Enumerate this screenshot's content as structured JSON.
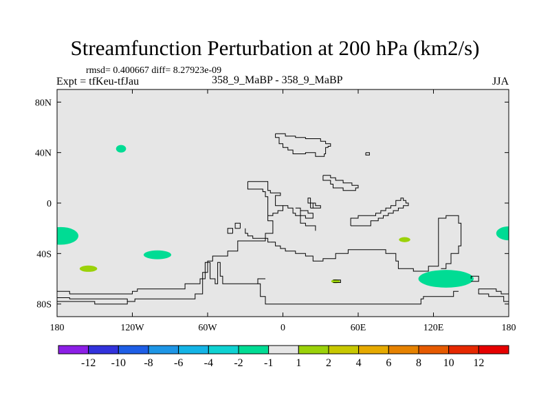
{
  "title": "Streamfunction Perturbation at 200 hPa (km2/s)",
  "stats_line": "rmsd= 0.400667 diff= 8.27923e-09",
  "left_subtitle": "Expt = tfKeu-tfJau",
  "center_subtitle": "358_9_MaBP - 358_9_MaBP",
  "right_subtitle": "JJA",
  "colors": {
    "plot_background": "#e6e6e6",
    "coastline": "#000000",
    "neg_1_to_2": "#00dc94",
    "pos_1_to_2": "#9bd20a"
  },
  "chart_data": {
    "type": "heatmap",
    "projection": "cylindrical-equidistant",
    "xlim": [
      -180,
      180
    ],
    "ylim": [
      -90,
      90
    ],
    "x_ticks": [
      {
        "value": -180,
        "label": "180"
      },
      {
        "value": -120,
        "label": "120W"
      },
      {
        "value": -60,
        "label": "60W"
      },
      {
        "value": 0,
        "label": "0"
      },
      {
        "value": 60,
        "label": "60E"
      },
      {
        "value": 120,
        "label": "120E"
      },
      {
        "value": 180,
        "label": "180"
      }
    ],
    "y_ticks": [
      {
        "value": 80,
        "label": "80N"
      },
      {
        "value": 40,
        "label": "40N"
      },
      {
        "value": 0,
        "label": "0"
      },
      {
        "value": -40,
        "label": "40S"
      },
      {
        "value": -80,
        "label": "80S"
      }
    ],
    "colorbar": {
      "levels": [
        "-12",
        "-10",
        "-8",
        "-6",
        "-4",
        "-2",
        "-1",
        "1",
        "2",
        "4",
        "6",
        "8",
        "10",
        "12"
      ],
      "colors": [
        "#8c1fe6",
        "#3232dc",
        "#1e5ee6",
        "#1e96e6",
        "#14b4e6",
        "#0fd2d2",
        "#00dc94",
        "#e6e6e6",
        "#9bd20a",
        "#c8c800",
        "#e6aa00",
        "#e68200",
        "#e65a00",
        "#e62800",
        "#e60000"
      ]
    },
    "anomalies": [
      {
        "lon": -177,
        "lat": -26,
        "dlon": 14,
        "dlat": 7,
        "sign": "negative",
        "range": "-2 to -1"
      },
      {
        "lon": -129,
        "lat": 43,
        "dlon": 4,
        "dlat": 3,
        "sign": "negative",
        "range": "-2 to -1"
      },
      {
        "lon": -100,
        "lat": -41,
        "dlon": 11,
        "dlat": 3.5,
        "sign": "negative",
        "range": "-2 to -1"
      },
      {
        "lon": -155,
        "lat": -52,
        "dlon": 7,
        "dlat": 2.5,
        "sign": "positive",
        "range": "1 to 2"
      },
      {
        "lon": 97,
        "lat": -29,
        "dlon": 4.5,
        "dlat": 2,
        "sign": "positive",
        "range": "1 to 2"
      },
      {
        "lon": 42,
        "lat": -62,
        "dlon": 3.5,
        "dlat": 1.5,
        "sign": "positive",
        "range": "1 to 2"
      },
      {
        "lon": 130,
        "lat": -60,
        "dlon": 22,
        "dlat": 7,
        "sign": "negative",
        "range": "-2 to -1"
      },
      {
        "lon": 180,
        "lat": -24,
        "dlon": 10,
        "dlat": 5.5,
        "sign": "negative",
        "range": "-2 to -1"
      }
    ],
    "coastlines": [
      [
        [
          -6,
          55
        ],
        [
          -6,
          52
        ],
        [
          -3,
          52
        ],
        [
          -3,
          47
        ],
        [
          0,
          47
        ],
        [
          0,
          44
        ],
        [
          4,
          44
        ],
        [
          4,
          42
        ],
        [
          8,
          42
        ],
        [
          8,
          39
        ],
        [
          18,
          39
        ],
        [
          18,
          40
        ],
        [
          26,
          40
        ],
        [
          26,
          37
        ],
        [
          33,
          37
        ],
        [
          33,
          39
        ],
        [
          34,
          39
        ],
        [
          34,
          44
        ],
        [
          36,
          44
        ],
        [
          36,
          45
        ],
        [
          38,
          45
        ],
        [
          38,
          47
        ],
        [
          34,
          47
        ],
        [
          34,
          49
        ],
        [
          30,
          49
        ],
        [
          30,
          51
        ],
        [
          18,
          51
        ],
        [
          18,
          52
        ],
        [
          10,
          52
        ],
        [
          10,
          53
        ],
        [
          2,
          53
        ],
        [
          2,
          55
        ],
        [
          -6,
          55
        ]
      ],
      [
        [
          66,
          40
        ],
        [
          66,
          38
        ],
        [
          69,
          38
        ],
        [
          69,
          40
        ],
        [
          66,
          40
        ]
      ],
      [
        [
          32,
          22
        ],
        [
          32,
          18
        ],
        [
          38,
          18
        ],
        [
          38,
          15
        ],
        [
          40,
          15
        ],
        [
          40,
          12
        ],
        [
          48,
          12
        ],
        [
          48,
          10
        ],
        [
          58,
          10
        ],
        [
          58,
          12
        ],
        [
          60,
          12
        ],
        [
          60,
          14
        ],
        [
          55,
          14
        ],
        [
          55,
          16
        ],
        [
          48,
          16
        ],
        [
          48,
          18
        ],
        [
          42,
          18
        ],
        [
          42,
          20
        ],
        [
          38,
          20
        ],
        [
          38,
          22
        ],
        [
          32,
          22
        ]
      ],
      [
        [
          -28,
          17
        ],
        [
          -28,
          11
        ],
        [
          -16,
          11
        ],
        [
          -16,
          9
        ],
        [
          -14,
          9
        ],
        [
          -14,
          5
        ],
        [
          -12,
          5
        ],
        [
          -12,
          -10
        ],
        [
          -12,
          -14
        ],
        [
          -8,
          -14
        ],
        [
          -8,
          -24
        ],
        [
          -14,
          -24
        ],
        [
          -14,
          -30
        ],
        [
          -36,
          -30
        ],
        [
          -36,
          -38
        ],
        [
          -44,
          -38
        ],
        [
          -44,
          -42
        ],
        [
          -56,
          -42
        ],
        [
          -56,
          -46
        ],
        [
          -60,
          -46
        ],
        [
          -60,
          -55
        ],
        [
          -64,
          -55
        ],
        [
          -64,
          -60
        ],
        [
          -66,
          -60
        ],
        [
          -66,
          -64
        ],
        [
          -78,
          -64
        ],
        [
          -78,
          -68
        ],
        [
          -116,
          -68
        ],
        [
          -116,
          -70
        ],
        [
          -120,
          -70
        ],
        [
          -120,
          -72
        ],
        [
          -170,
          -72
        ],
        [
          -170,
          -70
        ],
        [
          -180,
          -70
        ]
      ],
      [
        [
          -180,
          -75
        ],
        [
          -170,
          -75
        ],
        [
          -170,
          -76
        ],
        [
          -124,
          -76
        ],
        [
          -124,
          -78
        ],
        [
          -118,
          -78
        ],
        [
          -118,
          -76
        ],
        [
          -70,
          -76
        ],
        [
          -70,
          -72
        ],
        [
          -64,
          -72
        ],
        [
          -64,
          -60
        ],
        [
          -62,
          -60
        ],
        [
          -62,
          -47
        ],
        [
          -58,
          -47
        ],
        [
          -58,
          -60
        ],
        [
          -54,
          -60
        ],
        [
          -54,
          -64
        ],
        [
          -52,
          -64
        ],
        [
          -52,
          -58
        ],
        [
          -52,
          -47
        ],
        [
          -50,
          -47
        ],
        [
          -50,
          -58
        ],
        [
          -48,
          -58
        ],
        [
          -48,
          -64
        ],
        [
          -20,
          -64
        ],
        [
          -20,
          -60
        ],
        [
          -14,
          -60
        ]
      ],
      [
        [
          -12,
          -10
        ],
        [
          -8,
          -10
        ],
        [
          -8,
          -8
        ],
        [
          -4,
          -8
        ],
        [
          -4,
          -6
        ],
        [
          0,
          -6
        ],
        [
          0,
          -2
        ],
        [
          -6,
          -2
        ],
        [
          -6,
          6
        ],
        [
          -2,
          6
        ],
        [
          -2,
          8
        ],
        [
          -10,
          8
        ],
        [
          -10,
          10
        ],
        [
          -12,
          10
        ],
        [
          -12,
          17
        ],
        [
          -28,
          17
        ]
      ],
      [
        [
          -34,
          -20
        ],
        [
          -34,
          -16
        ],
        [
          -38,
          -16
        ],
        [
          -38,
          -20
        ],
        [
          -34,
          -20
        ]
      ],
      [
        [
          -40,
          -24
        ],
        [
          -40,
          -20
        ],
        [
          -44,
          -20
        ],
        [
          -44,
          -24
        ],
        [
          -40,
          -24
        ]
      ],
      [
        [
          -10,
          -31
        ],
        [
          -6,
          -31
        ],
        [
          -6,
          -34
        ],
        [
          -2,
          -34
        ],
        [
          -2,
          -36
        ],
        [
          2,
          -36
        ],
        [
          2,
          -38
        ],
        [
          10,
          -38
        ],
        [
          10,
          -40
        ],
        [
          18,
          -40
        ],
        [
          18,
          -42
        ],
        [
          24,
          -42
        ],
        [
          24,
          -46
        ],
        [
          32,
          -46
        ],
        [
          32,
          -44
        ],
        [
          42,
          -44
        ],
        [
          42,
          -40
        ],
        [
          52,
          -40
        ],
        [
          52,
          -37
        ],
        [
          82,
          -37
        ],
        [
          82,
          -40
        ],
        [
          90,
          -40
        ],
        [
          90,
          -46
        ],
        [
          92,
          -46
        ],
        [
          92,
          -52
        ],
        [
          104,
          -52
        ],
        [
          104,
          -54
        ],
        [
          116,
          -54
        ],
        [
          116,
          -50
        ],
        [
          124,
          -50
        ],
        [
          124,
          -12
        ],
        [
          130,
          -12
        ],
        [
          130,
          -10
        ],
        [
          140,
          -10
        ],
        [
          140,
          -16
        ],
        [
          142,
          -16
        ],
        [
          142,
          -34
        ],
        [
          140,
          -34
        ],
        [
          140,
          -40
        ],
        [
          134,
          -40
        ],
        [
          134,
          -48
        ],
        [
          130,
          -48
        ],
        [
          130,
          -52
        ],
        [
          126,
          -52
        ]
      ],
      [
        [
          0,
          -2
        ],
        [
          4,
          -2
        ],
        [
          4,
          -4
        ],
        [
          8,
          -4
        ],
        [
          8,
          -8
        ],
        [
          10,
          -8
        ],
        [
          10,
          -10
        ],
        [
          18,
          -10
        ],
        [
          18,
          -12
        ],
        [
          24,
          -12
        ],
        [
          24,
          -8
        ],
        [
          20,
          -8
        ],
        [
          20,
          -6
        ],
        [
          14,
          -6
        ],
        [
          14,
          -4
        ],
        [
          10,
          -4
        ]
      ],
      [
        [
          22,
          -4
        ],
        [
          24,
          -4
        ],
        [
          24,
          0
        ],
        [
          20,
          0
        ],
        [
          20,
          4
        ],
        [
          22,
          4
        ],
        [
          22,
          -4
        ]
      ],
      [
        [
          -10,
          -31
        ],
        [
          -12,
          -31
        ],
        [
          -12,
          -28
        ],
        [
          -24,
          -28
        ],
        [
          -24,
          -26
        ],
        [
          -28,
          -26
        ],
        [
          -28,
          -24
        ],
        [
          -30,
          -24
        ],
        [
          -30,
          -20
        ]
      ],
      [
        [
          54,
          -18
        ],
        [
          54,
          -12
        ],
        [
          60,
          -12
        ],
        [
          60,
          -10
        ],
        [
          74,
          -10
        ],
        [
          74,
          -8
        ],
        [
          78,
          -8
        ],
        [
          78,
          -6
        ],
        [
          82,
          -6
        ],
        [
          82,
          -4
        ],
        [
          86,
          -4
        ],
        [
          86,
          -2
        ],
        [
          90,
          -2
        ],
        [
          90,
          2
        ],
        [
          94,
          2
        ],
        [
          94,
          4
        ],
        [
          96,
          4
        ],
        [
          96,
          2
        ],
        [
          98,
          2
        ],
        [
          98,
          0
        ],
        [
          100,
          0
        ],
        [
          100,
          -2
        ],
        [
          96,
          -2
        ],
        [
          96,
          -4
        ],
        [
          92,
          -4
        ],
        [
          92,
          -6
        ],
        [
          88,
          -6
        ],
        [
          88,
          -8
        ],
        [
          84,
          -8
        ],
        [
          84,
          -10
        ],
        [
          80,
          -10
        ],
        [
          80,
          -12
        ],
        [
          76,
          -12
        ],
        [
          76,
          -14
        ],
        [
          70,
          -14
        ],
        [
          70,
          -18
        ],
        [
          54,
          -18
        ]
      ],
      [
        [
          24,
          -4
        ],
        [
          30,
          -4
        ],
        [
          30,
          -2
        ],
        [
          26,
          -2
        ],
        [
          26,
          0
        ],
        [
          24,
          0
        ]
      ],
      [
        [
          14,
          -6
        ],
        [
          14,
          -16
        ],
        [
          18,
          -16
        ],
        [
          18,
          -18
        ],
        [
          26,
          -18
        ],
        [
          26,
          -22
        ]
      ],
      [
        [
          150,
          -60
        ],
        [
          150,
          -58
        ],
        [
          156,
          -58
        ],
        [
          156,
          -62
        ],
        [
          150,
          -62
        ]
      ],
      [
        [
          -180,
          -78
        ],
        [
          -150,
          -78
        ],
        [
          -150,
          -80
        ],
        [
          -124,
          -80
        ],
        [
          -124,
          -78
        ]
      ],
      [
        [
          -20,
          -60
        ],
        [
          -20,
          -64
        ],
        [
          -18,
          -64
        ],
        [
          -18,
          -74
        ],
        [
          -14,
          -74
        ],
        [
          -14,
          -80
        ],
        [
          110,
          -80
        ],
        [
          110,
          -76
        ],
        [
          112,
          -76
        ],
        [
          112,
          -74
        ],
        [
          136,
          -74
        ],
        [
          136,
          -70
        ],
        [
          140,
          -70
        ]
      ],
      [
        [
          156,
          -70
        ],
        [
          156,
          -68
        ],
        [
          170,
          -68
        ],
        [
          170,
          -70
        ],
        [
          174,
          -70
        ],
        [
          174,
          -72
        ],
        [
          180,
          -72
        ]
      ],
      [
        [
          156,
          -70
        ],
        [
          156,
          -72
        ],
        [
          164,
          -72
        ],
        [
          164,
          -74
        ],
        [
          176,
          -74
        ],
        [
          176,
          -78
        ],
        [
          180,
          -78
        ]
      ],
      [
        [
          40,
          -61
        ],
        [
          46,
          -61
        ],
        [
          46,
          -63
        ],
        [
          40,
          -63
        ]
      ]
    ]
  }
}
